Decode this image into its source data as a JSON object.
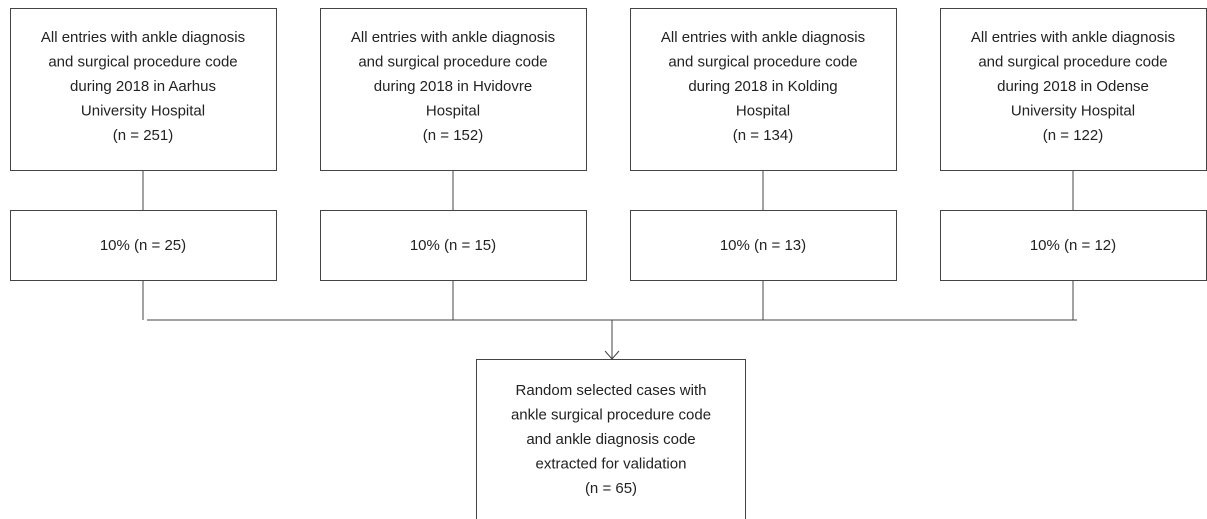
{
  "sources": [
    {
      "lines": [
        "All entries with ankle diagnosis",
        "and surgical procedure code",
        "during 2018 in Aarhus",
        "University Hospital",
        "(n = 251)"
      ]
    },
    {
      "lines": [
        "All entries with ankle diagnosis",
        "and surgical procedure code",
        "during 2018 in Hvidovre",
        "Hospital",
        "(n = 152)"
      ]
    },
    {
      "lines": [
        "All entries with ankle diagnosis",
        "and surgical procedure code",
        "during 2018 in Kolding",
        "Hospital",
        "(n = 134)"
      ]
    },
    {
      "lines": [
        "All entries with ankle diagnosis",
        "and surgical procedure code",
        "during 2018 in Odense",
        "University Hospital",
        "(n = 122)"
      ]
    }
  ],
  "samples": [
    {
      "label": "10% (n = 25)"
    },
    {
      "label": "10% (n = 15)"
    },
    {
      "label": "10% (n = 13)"
    },
    {
      "label": "10% (n = 12)"
    }
  ],
  "result": {
    "lines": [
      "Random selected cases with",
      "ankle surgical procedure code",
      "and ankle diagnosis code",
      "extracted for validation",
      "(n = 65)"
    ]
  }
}
